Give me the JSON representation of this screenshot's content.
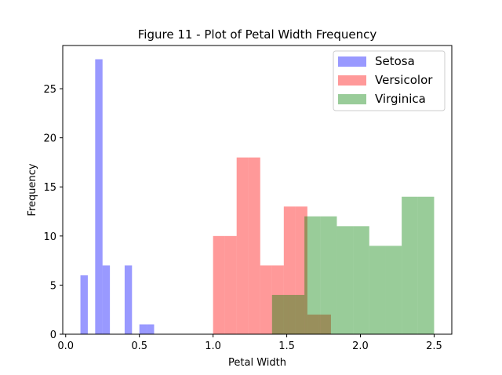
{
  "chart_data": {
    "type": "bar",
    "title": "Figure 11 - Plot of Petal Width Frequency",
    "xlabel": "Petal Width",
    "ylabel": "Frequency",
    "xlim": [
      -0.02,
      2.62
    ],
    "ylim": [
      0,
      29.4
    ],
    "xticks": [
      {
        "value": 0.0,
        "label": "0.0"
      },
      {
        "value": 0.5,
        "label": "0.5"
      },
      {
        "value": 1.0,
        "label": "1.0"
      },
      {
        "value": 1.5,
        "label": "1.5"
      },
      {
        "value": 2.0,
        "label": "2.0"
      },
      {
        "value": 2.5,
        "label": "2.5"
      }
    ],
    "yticks": [
      {
        "value": 0,
        "label": "0"
      },
      {
        "value": 5,
        "label": "5"
      },
      {
        "value": 10,
        "label": "10"
      },
      {
        "value": 15,
        "label": "15"
      },
      {
        "value": 20,
        "label": "20"
      },
      {
        "value": 25,
        "label": "25"
      }
    ],
    "grid": false,
    "legend_position": "top-right",
    "series": [
      {
        "name": "Setosa",
        "color": "#0000ff",
        "alpha": 0.4,
        "bins": [
          {
            "x0": 0.1,
            "x1": 0.15,
            "count": 6
          },
          {
            "x0": 0.15,
            "x1": 0.2,
            "count": 0
          },
          {
            "x0": 0.2,
            "x1": 0.25,
            "count": 28
          },
          {
            "x0": 0.25,
            "x1": 0.3,
            "count": 7
          },
          {
            "x0": 0.3,
            "x1": 0.35,
            "count": 0
          },
          {
            "x0": 0.35,
            "x1": 0.4,
            "count": 0
          },
          {
            "x0": 0.4,
            "x1": 0.45,
            "count": 7
          },
          {
            "x0": 0.45,
            "x1": 0.5,
            "count": 0
          },
          {
            "x0": 0.5,
            "x1": 0.55,
            "count": 1
          },
          {
            "x0": 0.55,
            "x1": 0.6,
            "count": 1
          }
        ]
      },
      {
        "name": "Versicolor",
        "color": "#ff0000",
        "alpha": 0.4,
        "bins": [
          {
            "x0": 1.0,
            "x1": 1.08,
            "count": 10
          },
          {
            "x0": 1.08,
            "x1": 1.16,
            "count": 10
          },
          {
            "x0": 1.16,
            "x1": 1.24,
            "count": 18
          },
          {
            "x0": 1.24,
            "x1": 1.32,
            "count": 18
          },
          {
            "x0": 1.32,
            "x1": 1.4,
            "count": 7
          },
          {
            "x0": 1.4,
            "x1": 1.48,
            "count": 7
          },
          {
            "x0": 1.48,
            "x1": 1.56,
            "count": 13
          },
          {
            "x0": 1.56,
            "x1": 1.64,
            "count": 13
          },
          {
            "x0": 1.64,
            "x1": 1.72,
            "count": 2
          },
          {
            "x0": 1.72,
            "x1": 1.8,
            "count": 2
          }
        ]
      },
      {
        "name": "Virginica",
        "color": "#008000",
        "alpha": 0.4,
        "bins": [
          {
            "x0": 1.4,
            "x1": 1.51,
            "count": 4
          },
          {
            "x0": 1.51,
            "x1": 1.62,
            "count": 4
          },
          {
            "x0": 1.62,
            "x1": 1.73,
            "count": 12
          },
          {
            "x0": 1.73,
            "x1": 1.84,
            "count": 12
          },
          {
            "x0": 1.84,
            "x1": 1.95,
            "count": 11
          },
          {
            "x0": 1.95,
            "x1": 2.06,
            "count": 11
          },
          {
            "x0": 2.06,
            "x1": 2.17,
            "count": 9
          },
          {
            "x0": 2.17,
            "x1": 2.28,
            "count": 9
          },
          {
            "x0": 2.28,
            "x1": 2.39,
            "count": 14
          },
          {
            "x0": 2.39,
            "x1": 2.5,
            "count": 14
          }
        ]
      }
    ]
  }
}
